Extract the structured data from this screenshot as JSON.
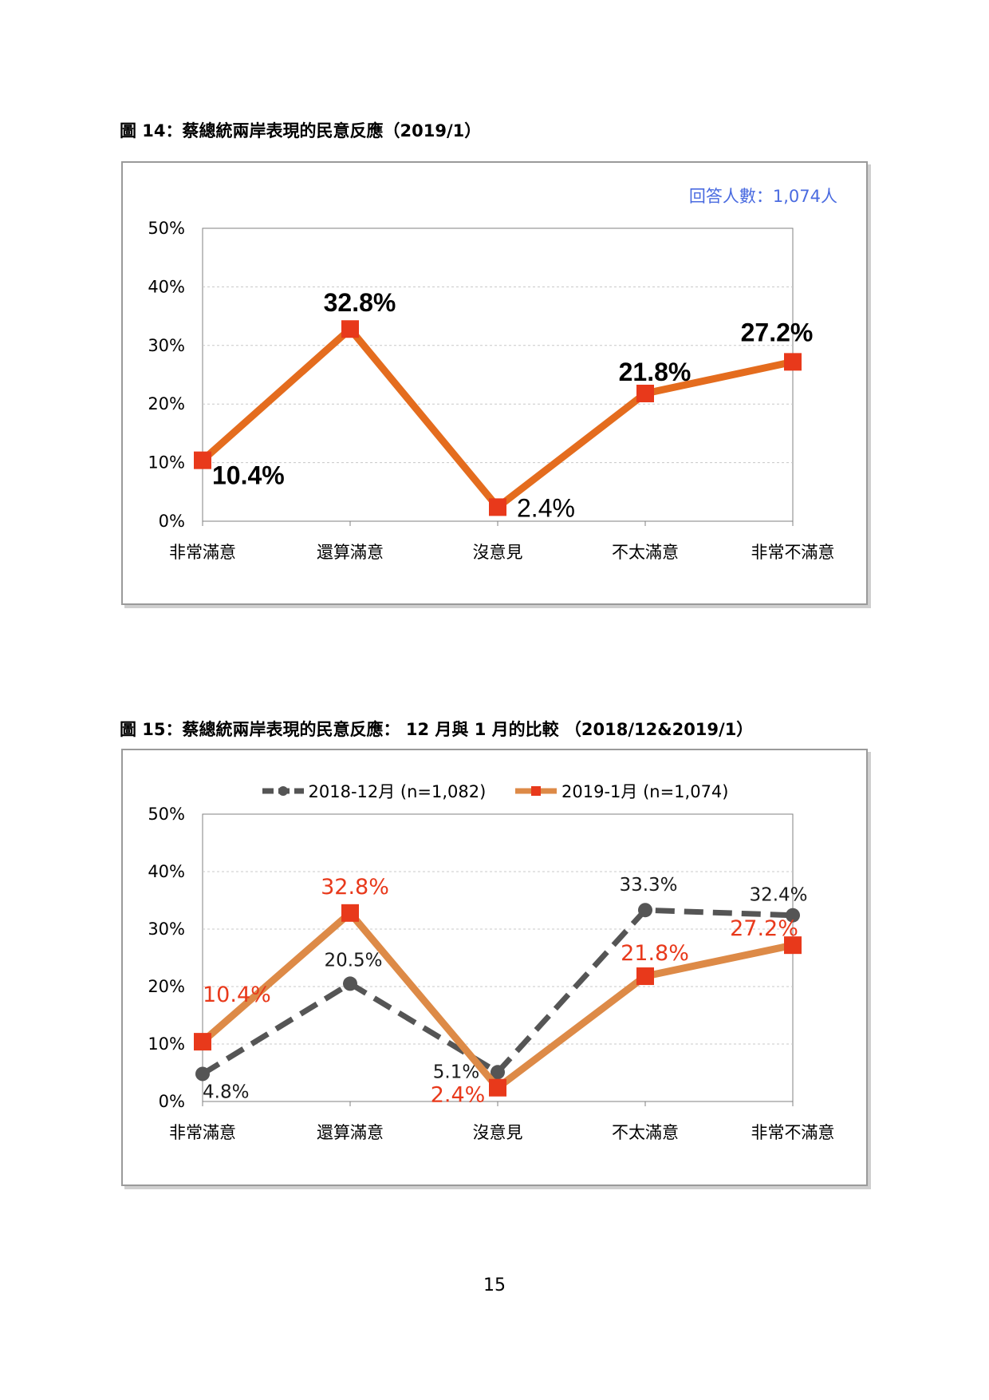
{
  "figures": {
    "fig14": {
      "caption": "圖 14：蔡總統兩岸表現的民意反應（2019/1）",
      "respondents": "回答人數：1,074人"
    },
    "fig15": {
      "caption": "圖 15：蔡總統兩岸表現的民意反應： 12 月與 1 月的比較 （2018/12&2019/1）"
    }
  },
  "page_number": "15",
  "chart_data": [
    {
      "type": "line",
      "title": "",
      "categories": [
        "非常滿意",
        "還算滿意",
        "沒意見",
        "不太滿意",
        "非常不滿意"
      ],
      "y_ticks": [
        "0%",
        "10%",
        "20%",
        "30%",
        "40%",
        "50%"
      ],
      "ylim": [
        0,
        50
      ],
      "grid": true,
      "legend": "none",
      "series": [
        {
          "values": [
            10.4,
            32.8,
            2.4,
            21.8,
            27.2
          ],
          "labels": [
            "10.4%",
            "32.8%",
            "2.4%",
            "21.8%",
            "27.2%"
          ],
          "color": "#e46c1e",
          "marker_color": "#e8391b",
          "marker": "square"
        }
      ]
    },
    {
      "type": "line",
      "title": "",
      "categories": [
        "非常滿意",
        "還算滿意",
        "沒意見",
        "不太滿意",
        "非常不滿意"
      ],
      "y_ticks": [
        "0%",
        "10%",
        "20%",
        "30%",
        "40%",
        "50%"
      ],
      "ylim": [
        0,
        50
      ],
      "grid": true,
      "legend": "top-center",
      "series": [
        {
          "name": "2018-12月 (n=1,082)",
          "values": [
            4.8,
            20.5,
            5.1,
            33.3,
            32.4
          ],
          "labels": [
            "4.8%",
            "20.5%",
            "5.1%",
            "33.3%",
            "32.4%"
          ],
          "color": "#555555",
          "marker": "circle",
          "dashed": true
        },
        {
          "name": "2019-1月 (n=1,074)",
          "values": [
            10.4,
            32.8,
            2.4,
            21.8,
            27.2
          ],
          "labels": [
            "10.4%",
            "32.8%",
            "2.4%",
            "21.8%",
            "27.2%"
          ],
          "color": "#dd8a47",
          "marker_color": "#e8391b",
          "marker": "square",
          "dashed": false
        }
      ]
    }
  ]
}
